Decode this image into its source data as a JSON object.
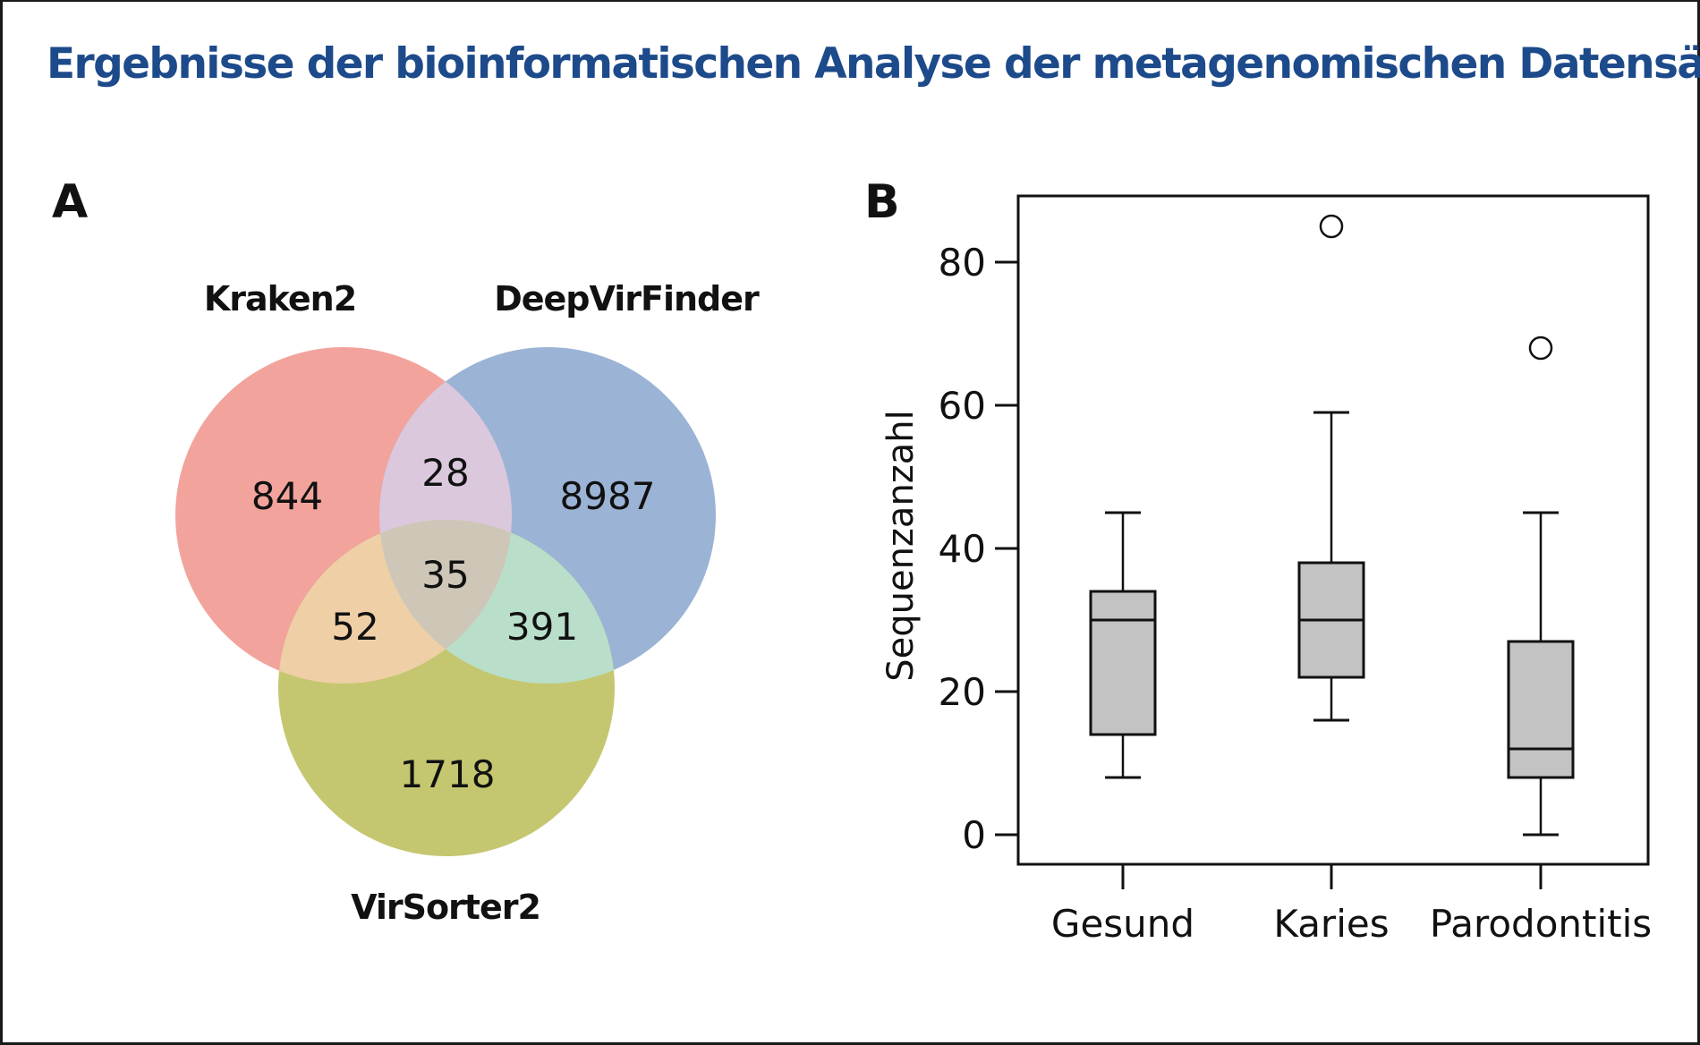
{
  "title": "Ergebnisse der bioinformatischen Analyse der metagenomischen Datensätze",
  "chart_data": [
    {
      "panel": "A",
      "type": "venn",
      "sets": [
        {
          "name": "Kraken2",
          "color": "#f2a39c"
        },
        {
          "name": "DeepVirFinder",
          "color": "#9bb3d5"
        },
        {
          "name": "VirSorter2",
          "color": "#c4c76f"
        }
      ],
      "regions": [
        {
          "sets": [
            "Kraken2"
          ],
          "value": 844,
          "color": "#f2a39c"
        },
        {
          "sets": [
            "DeepVirFinder"
          ],
          "value": 8987,
          "color": "#9bb3d5"
        },
        {
          "sets": [
            "VirSorter2"
          ],
          "value": 1718,
          "color": "#c4c76f"
        },
        {
          "sets": [
            "Kraken2",
            "DeepVirFinder"
          ],
          "value": 28,
          "color": "#dbc8dc"
        },
        {
          "sets": [
            "Kraken2",
            "VirSorter2"
          ],
          "value": 52,
          "color": "#efcfa6"
        },
        {
          "sets": [
            "DeepVirFinder",
            "VirSorter2"
          ],
          "value": 391,
          "color": "#b9dfca"
        },
        {
          "sets": [
            "Kraken2",
            "DeepVirFinder",
            "VirSorter2"
          ],
          "value": 35,
          "color": "#cec6b7"
        }
      ]
    },
    {
      "panel": "B",
      "type": "boxplot",
      "title": "",
      "xlabel": "",
      "ylabel": "Sequenzanzahl",
      "ylim": [
        -4,
        92
      ],
      "yticks": [
        0,
        20,
        40,
        60,
        80
      ],
      "categories": [
        "Gesund",
        "Karies",
        "Parodontitis"
      ],
      "box_color": "#c3c3c3",
      "series": [
        {
          "name": "Gesund",
          "whisker_low": 8,
          "q1": 14,
          "median": 30,
          "q3": 34,
          "whisker_high": 45,
          "outliers": []
        },
        {
          "name": "Karies",
          "whisker_low": 16,
          "q1": 22,
          "median": 30,
          "q3": 38,
          "whisker_high": 59,
          "outliers": [
            85
          ]
        },
        {
          "name": "Parodontitis",
          "whisker_low": 0,
          "q1": 8,
          "median": 12,
          "q3": 27,
          "whisker_high": 45,
          "outliers": [
            68
          ]
        }
      ]
    }
  ]
}
